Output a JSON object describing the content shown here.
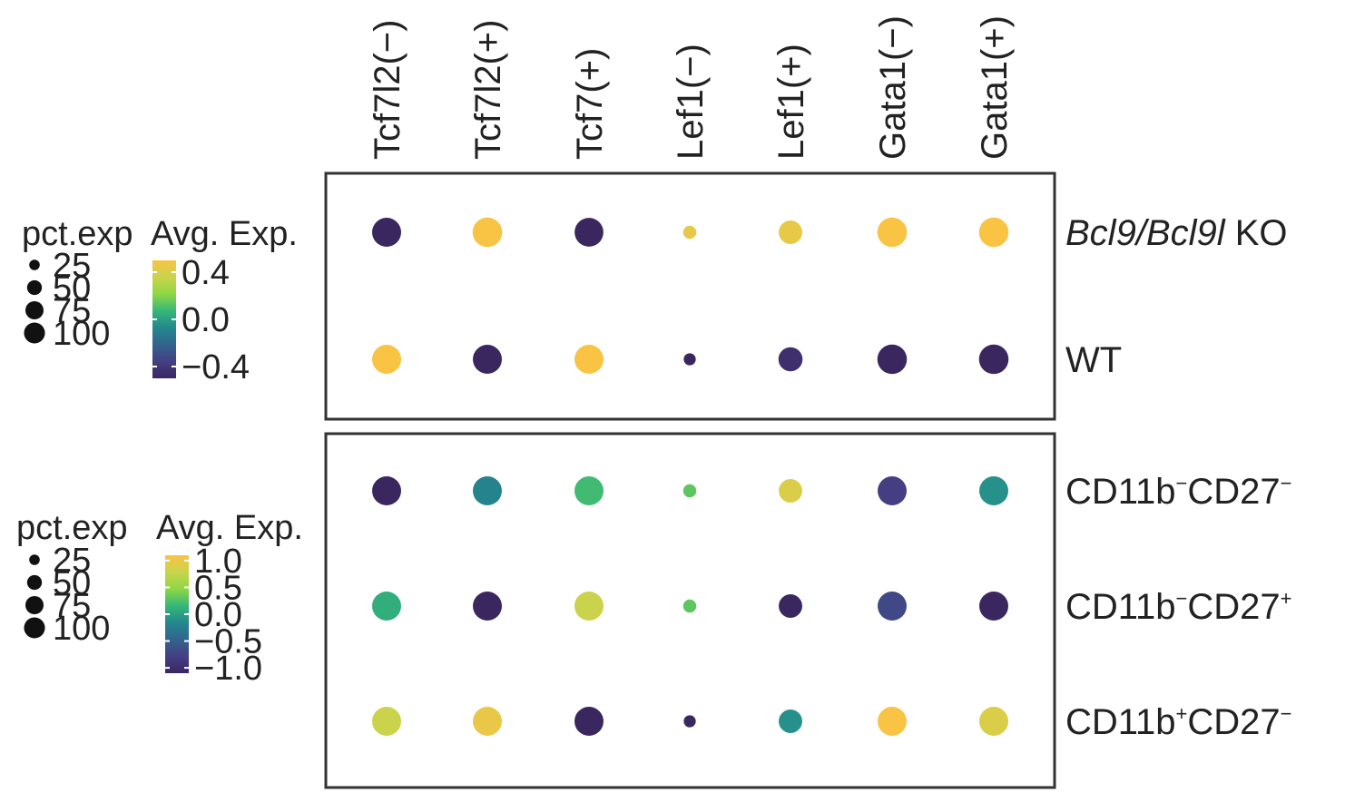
{
  "chart_data": [
    {
      "type": "dot",
      "columns": [
        "Tcf7l2(−)",
        "Tcf7l2(+)",
        "Tcf7(+)",
        "Lef1(−)",
        "Lef1(+)",
        "Gata1(−)",
        "Gata1(+)"
      ],
      "rows": [
        {
          "label_italic": "Bcl9/Bcl9l",
          "label_rest": " KO"
        },
        {
          "label_italic": "",
          "label_rest": "WT"
        }
      ],
      "pct_exp": [
        [
          58,
          60,
          57,
          12,
          38,
          60,
          60
        ],
        [
          58,
          58,
          58,
          10,
          40,
          60,
          60
        ]
      ],
      "avg_exp": [
        [
          -0.5,
          0.5,
          -0.5,
          0.45,
          0.45,
          0.5,
          0.5
        ],
        [
          0.5,
          -0.5,
          0.5,
          -0.5,
          -0.45,
          -0.5,
          -0.5
        ]
      ],
      "legend": {
        "size_title": "pct.exp",
        "size_values": [
          25,
          50,
          75,
          100
        ],
        "size_labels": [
          "25",
          "50",
          "75",
          "100"
        ],
        "color_title": "Avg. Exp.",
        "color_ticks": [
          0.4,
          0.0,
          -0.4
        ],
        "color_tick_labels": [
          "0.4",
          "0.0",
          "−0.4"
        ],
        "color_range": [
          -0.5,
          0.5
        ]
      }
    },
    {
      "type": "dot",
      "columns": [
        "Tcf7l2(−)",
        "Tcf7l2(+)",
        "Tcf7(+)",
        "Lef1(−)",
        "Lef1(+)",
        "Gata1(−)",
        "Gata1(+)"
      ],
      "rows": [
        {
          "parts": [
            "CD11b",
            "−",
            "CD27",
            "−"
          ]
        },
        {
          "parts": [
            "CD11b",
            "−",
            "CD27",
            "+"
          ]
        },
        {
          "parts": [
            "CD11b",
            "+",
            "CD27",
            "−"
          ]
        }
      ],
      "pct_exp": [
        [
          58,
          58,
          58,
          12,
          38,
          58,
          58
        ],
        [
          58,
          58,
          58,
          12,
          38,
          58,
          58
        ],
        [
          58,
          58,
          58,
          10,
          38,
          58,
          58
        ]
      ],
      "avg_exp": [
        [
          -1.1,
          -0.2,
          0.2,
          0.3,
          0.9,
          -0.8,
          -0.1
        ],
        [
          0.1,
          -1.1,
          0.8,
          0.3,
          -1.1,
          -0.7,
          -1.1
        ],
        [
          0.8,
          1.0,
          -1.1,
          -1.1,
          -0.1,
          1.1,
          0.9
        ]
      ],
      "legend": {
        "size_title": "pct.exp",
        "size_values": [
          25,
          50,
          75,
          100
        ],
        "size_labels": [
          "25",
          "50",
          "75",
          "100"
        ],
        "color_title": "Avg. Exp.",
        "color_ticks": [
          1.0,
          0.5,
          0.0,
          -0.5,
          -1.0
        ],
        "color_tick_labels": [
          "1.0",
          "0.5",
          "0.0",
          "−0.5",
          "−1.0"
        ],
        "color_range": [
          -1.1,
          1.1
        ]
      }
    }
  ],
  "palette": [
    "#3b2760",
    "#453f84",
    "#33638d",
    "#23888e",
    "#35b779",
    "#8fd744",
    "#c9d44c",
    "#f9c344"
  ]
}
